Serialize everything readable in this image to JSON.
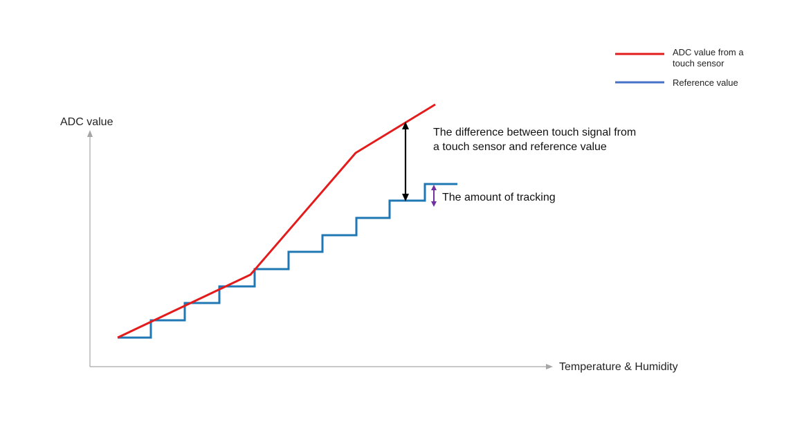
{
  "colors": {
    "adc_line": "#e31b1b",
    "reference_line": "#1f77b4",
    "legend_reference": "#4472c4",
    "axis": "#a6a6a6",
    "difference_arrow": "#000000",
    "tracking_arrow": "#7030a0"
  },
  "y_axis": {
    "label": "ADC value"
  },
  "x_axis": {
    "label": "Temperature & Humidity"
  },
  "legend": {
    "adc": {
      "line1": "ADC value from a",
      "line2": "touch sensor"
    },
    "reference": {
      "label": "Reference value"
    }
  },
  "annotations": {
    "difference": {
      "line1": "The difference between touch signal from",
      "line2": "a touch sensor and reference value"
    },
    "tracking": {
      "label": "The amount of tracking"
    }
  }
}
